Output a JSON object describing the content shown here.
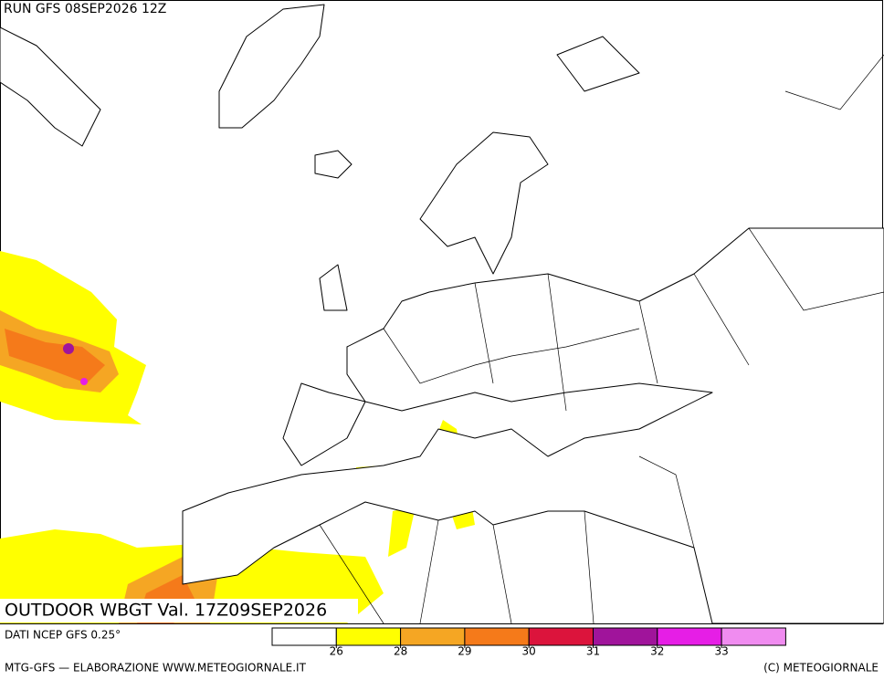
{
  "header": {
    "run": "RUN GFS 08SEP2026 12Z"
  },
  "map": {
    "title": "OUTDOOR WBGT Val. 17Z09SEP2026"
  },
  "legend": {
    "source": "DATI NCEP GFS 0.25°",
    "levels": [
      26,
      28,
      29,
      30,
      31,
      32,
      33
    ],
    "colors": [
      "#ffffff",
      "#ffff00",
      "#f5a623",
      "#f57a1a",
      "#dc143c",
      "#a0149b",
      "#e61ee6",
      "#f08cf0"
    ]
  },
  "footer": {
    "left": "MTG-GFS — ELABORAZIONE WWW.METEOGIORNALE.IT",
    "right": "(C) METEOGIORNALE"
  }
}
